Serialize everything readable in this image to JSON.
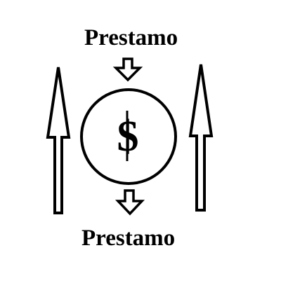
{
  "labels": {
    "top": "Prestamo",
    "bottom": "Prestamo",
    "currency_symbol": "$"
  },
  "icons": {
    "left_arrow": "tall-up-arrow-icon",
    "right_arrow": "tall-up-arrow-icon",
    "top_arrow": "down-arrow-icon",
    "bottom_arrow": "down-arrow-icon",
    "center": "coin-circle-icon"
  },
  "colors": {
    "stroke": "#000000",
    "background": "#ffffff"
  }
}
